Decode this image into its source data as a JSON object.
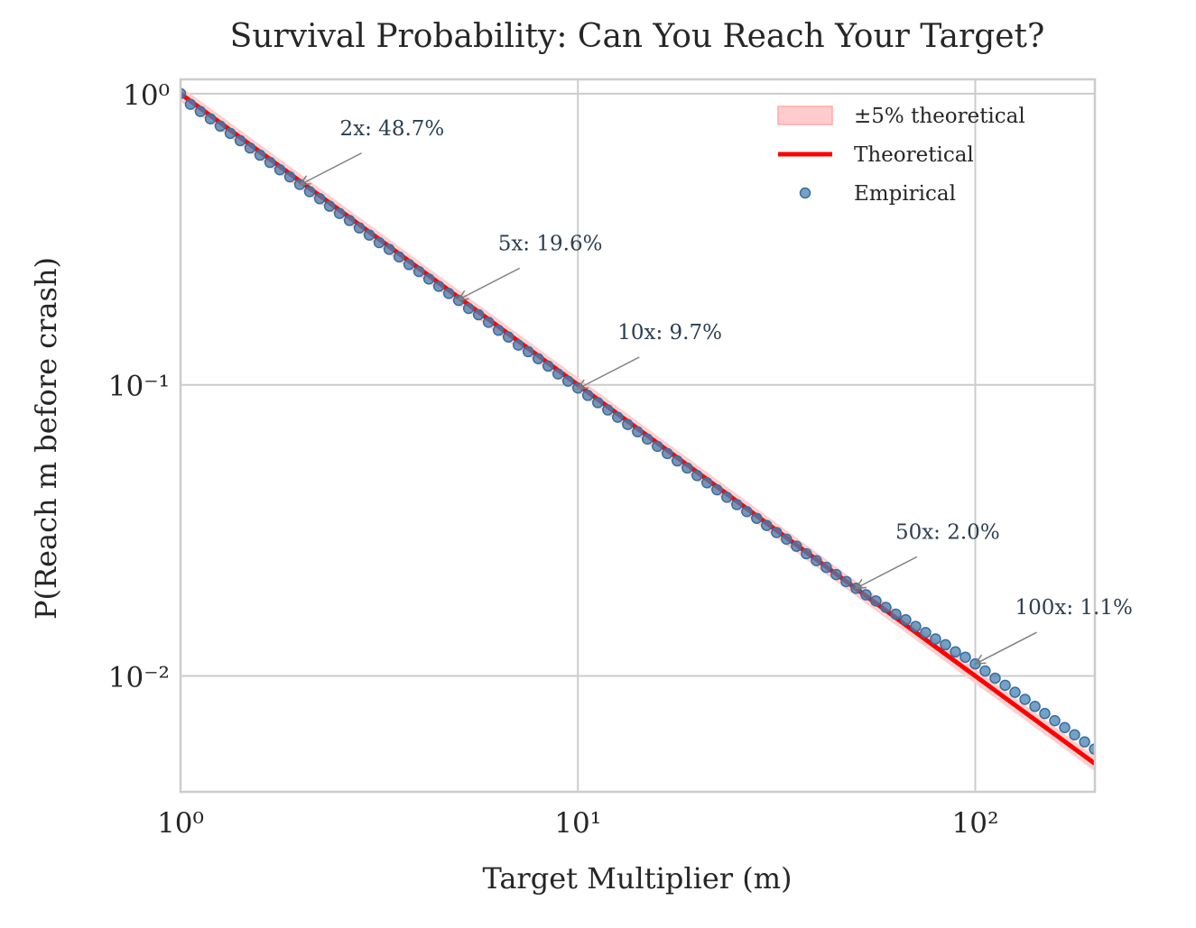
{
  "chart_data": {
    "type": "scatter",
    "title": "Survival Probability: Can You Reach Your Target?",
    "x_label": "Target Multiplier (m)",
    "y_label": "P(Reach m before crash)",
    "x_scale": "log",
    "y_scale": "log",
    "grid": true,
    "legend": "upper right",
    "xlim": [
      1,
      200
    ],
    "ylim": [
      0.004,
      1.12
    ],
    "xticks": [
      {
        "value": 1,
        "label": "10⁰"
      },
      {
        "value": 10,
        "label": "10¹"
      },
      {
        "value": 100,
        "label": "10²"
      }
    ],
    "yticks": [
      {
        "value": 0.01,
        "label": "10⁻²"
      },
      {
        "value": 0.1,
        "label": "10⁻¹"
      },
      {
        "value": 1,
        "label": "10⁰"
      }
    ],
    "series": [
      {
        "name": "±5% theoretical",
        "kind": "band",
        "color": "#ffcccc",
        "x": [
          1,
          200
        ],
        "low": [
          0.95,
          0.00475
        ],
        "high": [
          1.05,
          0.00525
        ]
      },
      {
        "name": "Theoretical",
        "kind": "line",
        "color": "#ff0000",
        "x": [
          1,
          200
        ],
        "values": [
          1,
          0.005
        ]
      },
      {
        "name": "Empirical",
        "kind": "scatter",
        "color": "#4682b4",
        "x": [
          1,
          1.059,
          1.122,
          1.189,
          1.259,
          1.334,
          1.413,
          1.496,
          1.585,
          1.679,
          1.778,
          1.884,
          1.995,
          2.113,
          2.239,
          2.371,
          2.512,
          2.661,
          2.818,
          2.985,
          3.162,
          3.35,
          3.548,
          3.758,
          3.981,
          4.217,
          4.467,
          4.732,
          5.012,
          5.309,
          5.623,
          5.957,
          6.31,
          6.683,
          7.079,
          7.499,
          7.943,
          8.414,
          8.913,
          9.441,
          10,
          10.59,
          11.22,
          11.89,
          12.59,
          13.34,
          14.13,
          14.96,
          15.85,
          16.79,
          17.78,
          18.84,
          19.95,
          21.13,
          22.39,
          23.71,
          25.12,
          26.61,
          28.18,
          29.85,
          31.62,
          33.5,
          35.48,
          37.58,
          39.81,
          42.17,
          44.67,
          47.32,
          50.12,
          53.09,
          56.23,
          59.57,
          63.1,
          66.83,
          70.79,
          74.99,
          79.43,
          84.14,
          89.13,
          94.41,
          100,
          105.9,
          112.2,
          118.9,
          125.9,
          133.4,
          141.3,
          149.6,
          158.5,
          167.9,
          177.8,
          188.4,
          199.5
        ],
        "values": [
          1,
          0.92,
          0.869,
          0.82,
          0.774,
          0.731,
          0.69,
          0.651,
          0.615,
          0.581,
          0.548,
          0.518,
          0.488,
          0.461,
          0.436,
          0.411,
          0.388,
          0.367,
          0.346,
          0.327,
          0.308,
          0.292,
          0.275,
          0.259,
          0.245,
          0.231,
          0.218,
          0.206,
          0.195,
          0.183,
          0.174,
          0.164,
          0.154,
          0.146,
          0.137,
          0.13,
          0.123,
          0.116,
          0.109,
          0.103,
          0.0975,
          0.092,
          0.0869,
          0.082,
          0.0774,
          0.0731,
          0.069,
          0.0651,
          0.0615,
          0.0581,
          0.0548,
          0.0518,
          0.0488,
          0.0461,
          0.0436,
          0.0411,
          0.0388,
          0.0367,
          0.0348,
          0.0329,
          0.0311,
          0.0295,
          0.0279,
          0.0263,
          0.0249,
          0.0236,
          0.0223,
          0.0211,
          0.02,
          0.019,
          0.0181,
          0.0172,
          0.0163,
          0.0156,
          0.0148,
          0.0141,
          0.0134,
          0.0128,
          0.0121,
          0.0116,
          0.011,
          0.0104,
          0.00983,
          0.00929,
          0.00879,
          0.00831,
          0.00786,
          0.00743,
          0.00702,
          0.00665,
          0.00628,
          0.00594,
          0.00561
        ]
      }
    ],
    "annotations": [
      {
        "text": "2x: 48.7%",
        "x": 2,
        "y": 0.487
      },
      {
        "text": "5x: 19.6%",
        "x": 5,
        "y": 0.196
      },
      {
        "text": "10x: 9.7%",
        "x": 10,
        "y": 0.097
      },
      {
        "text": "50x: 2.0%",
        "x": 50,
        "y": 0.02
      },
      {
        "text": "100x: 1.1%",
        "x": 100,
        "y": 0.011
      }
    ]
  }
}
